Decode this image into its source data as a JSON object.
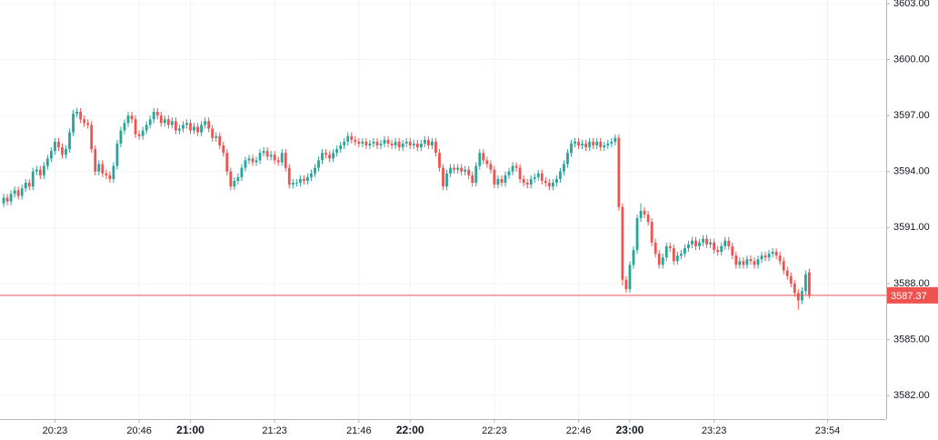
{
  "chart_data": {
    "type": "candlestick",
    "x": [
      "20:09",
      "20:10",
      "20:11",
      "20:12",
      "20:13",
      "20:14",
      "20:15",
      "20:16",
      "20:17",
      "20:18",
      "20:19",
      "20:20",
      "20:21",
      "20:22",
      "20:23",
      "20:24",
      "20:25",
      "20:26",
      "20:27",
      "20:28",
      "20:29",
      "20:30",
      "20:31",
      "20:32",
      "20:33",
      "20:34",
      "20:35",
      "20:36",
      "20:37",
      "20:38",
      "20:39",
      "20:40",
      "20:41",
      "20:42",
      "20:43",
      "20:44",
      "20:45",
      "20:46",
      "20:47",
      "20:48",
      "20:49",
      "20:50",
      "20:51",
      "20:52",
      "20:53",
      "20:54",
      "20:55",
      "20:56",
      "20:57",
      "20:58",
      "20:59",
      "21:00",
      "21:01",
      "21:02",
      "21:03",
      "21:04",
      "21:05",
      "21:06",
      "21:07",
      "21:08",
      "21:09",
      "21:10",
      "21:11",
      "21:12",
      "21:13",
      "21:14",
      "21:15",
      "21:16",
      "21:17",
      "21:18",
      "21:19",
      "21:20",
      "21:21",
      "21:22",
      "21:23",
      "21:24",
      "21:25",
      "21:26",
      "21:27",
      "21:28",
      "21:29",
      "21:30",
      "21:31",
      "21:32",
      "21:33",
      "21:34",
      "21:35",
      "21:36",
      "21:37",
      "21:38",
      "21:39",
      "21:40",
      "21:41",
      "21:42",
      "21:43",
      "21:44",
      "21:45",
      "21:46",
      "21:47",
      "21:48",
      "21:49",
      "21:50",
      "21:51",
      "21:52",
      "21:53",
      "21:54",
      "21:55",
      "21:56",
      "21:57",
      "21:58",
      "21:59",
      "22:00",
      "22:01",
      "22:02",
      "22:03",
      "22:04",
      "22:05",
      "22:06",
      "22:07",
      "22:08",
      "22:09",
      "22:10",
      "22:11",
      "22:12",
      "22:13",
      "22:14",
      "22:15",
      "22:16",
      "22:17",
      "22:18",
      "22:19",
      "22:20",
      "22:21",
      "22:22",
      "22:23",
      "22:24",
      "22:25",
      "22:26",
      "22:27",
      "22:28",
      "22:29",
      "22:30",
      "22:31",
      "22:32",
      "22:33",
      "22:34",
      "22:35",
      "22:36",
      "22:37",
      "22:38",
      "22:39",
      "22:40",
      "22:41",
      "22:42",
      "22:43",
      "22:44",
      "22:45",
      "22:46",
      "22:47",
      "22:48",
      "22:49",
      "22:50",
      "22:51",
      "22:52",
      "22:53",
      "22:54",
      "22:55",
      "22:56",
      "22:57",
      "22:58",
      "22:59",
      "23:00",
      "23:01",
      "23:02",
      "23:03",
      "23:04",
      "23:05",
      "23:06",
      "23:07",
      "23:08",
      "23:09",
      "23:10",
      "23:11",
      "23:12",
      "23:13",
      "23:14",
      "23:15",
      "23:16",
      "23:17",
      "23:18",
      "23:19",
      "23:20",
      "23:21",
      "23:22",
      "23:23",
      "23:24",
      "23:25",
      "23:26",
      "23:27",
      "23:28",
      "23:29",
      "23:30",
      "23:31",
      "23:32",
      "23:33",
      "23:34",
      "23:35",
      "23:36",
      "23:37",
      "23:38",
      "23:39",
      "23:40",
      "23:41",
      "23:42",
      "23:43",
      "23:44",
      "23:45",
      "23:46",
      "23:47",
      "23:48",
      "23:49"
    ],
    "open": [
      3592.3,
      3592.6,
      3592.4,
      3592.8,
      3593.0,
      3592.7,
      3593.1,
      3593.4,
      3593.2,
      3594.0,
      3594.1,
      3593.8,
      3594.3,
      3594.7,
      3595.1,
      3595.6,
      3595.3,
      3594.9,
      3595.2,
      3596.1,
      3597.1,
      3597.2,
      3596.8,
      3596.6,
      3596.5,
      3595.2,
      3594.0,
      3594.4,
      3593.9,
      3593.8,
      3593.6,
      3594.3,
      3595.5,
      3596.2,
      3596.6,
      3597.0,
      3596.8,
      3596.0,
      3595.9,
      3596.2,
      3596.5,
      3596.8,
      3597.2,
      3597.0,
      3596.6,
      3596.8,
      3596.5,
      3596.7,
      3596.2,
      3596.3,
      3596.5,
      3596.6,
      3596.2,
      3596.4,
      3596.1,
      3596.5,
      3596.7,
      3596.3,
      3595.8,
      3595.9,
      3595.4,
      3595.0,
      3594.0,
      3593.2,
      3593.5,
      3593.7,
      3594.2,
      3594.6,
      3594.7,
      3594.5,
      3594.6,
      3595.0,
      3595.1,
      3594.8,
      3594.9,
      3594.6,
      3594.5,
      3595.0,
      3594.2,
      3593.3,
      3593.4,
      3593.4,
      3593.6,
      3593.5,
      3593.7,
      3593.9,
      3594.2,
      3594.6,
      3595.0,
      3594.9,
      3594.7,
      3595.0,
      3595.2,
      3595.4,
      3595.6,
      3595.9,
      3595.7,
      3595.6,
      3595.5,
      3595.6,
      3595.4,
      3595.5,
      3595.6,
      3595.4,
      3595.5,
      3595.7,
      3595.5,
      3595.4,
      3595.6,
      3595.3,
      3595.5,
      3595.6,
      3595.4,
      3595.5,
      3595.3,
      3595.5,
      3595.7,
      3595.4,
      3595.6,
      3595.0,
      3594.2,
      3593.2,
      3593.9,
      3594.2,
      3594.1,
      3594.2,
      3594.0,
      3594.1,
      3593.8,
      3593.4,
      3594.3,
      3595.0,
      3594.6,
      3594.4,
      3594.1,
      3593.3,
      3593.6,
      3593.4,
      3593.8,
      3594.0,
      3594.3,
      3594.2,
      3593.6,
      3593.4,
      3593.3,
      3593.6,
      3593.7,
      3593.9,
      3593.5,
      3593.4,
      3593.2,
      3593.4,
      3593.6,
      3594.0,
      3594.4,
      3595.0,
      3595.5,
      3595.6,
      3595.4,
      3595.5,
      3595.3,
      3595.6,
      3595.4,
      3595.6,
      3595.3,
      3595.4,
      3595.5,
      3595.6,
      3595.8,
      3592.1,
      3588.2,
      3587.7,
      3589.0,
      3589.8,
      3591.5,
      3591.9,
      3591.7,
      3591.3,
      3590.2,
      3589.6,
      3589.0,
      3589.4,
      3590.0,
      3589.9,
      3589.2,
      3589.5,
      3589.6,
      3589.9,
      3590.1,
      3590.3,
      3590.0,
      3590.2,
      3590.4,
      3590.1,
      3590.2,
      3589.8,
      3589.7,
      3590.0,
      3590.3,
      3590.0,
      3589.5,
      3589.0,
      3589.2,
      3589.0,
      3589.3,
      3589.2,
      3589.0,
      3589.3,
      3589.5,
      3589.4,
      3589.6,
      3589.7,
      3589.5,
      3589.2,
      3588.7,
      3588.4,
      3588.0,
      3587.5,
      3587.1,
      3587.6,
      3588.6
    ],
    "high": [
      3592.8,
      3592.8,
      3593.0,
      3593.2,
      3593.2,
      3593.3,
      3593.6,
      3593.6,
      3594.2,
      3594.3,
      3594.3,
      3594.5,
      3594.9,
      3595.3,
      3595.8,
      3595.8,
      3595.5,
      3595.4,
      3596.3,
      3597.3,
      3597.4,
      3597.4,
      3597.0,
      3596.8,
      3596.7,
      3595.4,
      3594.6,
      3594.6,
      3594.1,
      3594.0,
      3594.5,
      3595.7,
      3596.4,
      3596.8,
      3597.2,
      3597.2,
      3597.0,
      3596.2,
      3596.4,
      3596.7,
      3597.0,
      3597.4,
      3597.4,
      3597.2,
      3597.0,
      3597.0,
      3596.9,
      3596.9,
      3596.5,
      3596.7,
      3596.8,
      3596.8,
      3596.6,
      3596.6,
      3596.7,
      3596.9,
      3596.9,
      3596.5,
      3596.1,
      3596.1,
      3595.6,
      3595.2,
      3594.2,
      3593.7,
      3593.9,
      3594.4,
      3594.8,
      3594.9,
      3594.9,
      3594.8,
      3595.2,
      3595.3,
      3595.3,
      3595.1,
      3595.1,
      3594.8,
      3595.2,
      3595.2,
      3594.4,
      3593.6,
      3593.6,
      3593.8,
      3593.8,
      3593.9,
      3594.1,
      3594.4,
      3594.8,
      3595.2,
      3595.2,
      3595.1,
      3595.2,
      3595.4,
      3595.6,
      3595.8,
      3596.1,
      3596.1,
      3595.9,
      3595.8,
      3595.8,
      3595.8,
      3595.7,
      3595.8,
      3595.8,
      3595.7,
      3595.9,
      3595.9,
      3595.7,
      3595.8,
      3595.8,
      3595.7,
      3595.8,
      3595.8,
      3595.7,
      3595.7,
      3595.7,
      3595.9,
      3595.9,
      3595.8,
      3595.8,
      3595.2,
      3594.4,
      3594.1,
      3594.4,
      3594.4,
      3594.4,
      3594.4,
      3594.3,
      3594.3,
      3594.0,
      3594.5,
      3595.2,
      3595.2,
      3594.8,
      3594.6,
      3594.3,
      3593.8,
      3593.8,
      3594.0,
      3594.2,
      3594.5,
      3594.5,
      3594.4,
      3593.8,
      3593.6,
      3593.8,
      3593.9,
      3594.1,
      3594.1,
      3593.7,
      3593.6,
      3593.6,
      3593.8,
      3594.2,
      3594.6,
      3595.2,
      3595.7,
      3595.8,
      3595.8,
      3595.7,
      3595.7,
      3595.8,
      3595.8,
      3595.8,
      3595.8,
      3595.6,
      3595.7,
      3595.8,
      3596.0,
      3596.0,
      3592.3,
      3588.4,
      3589.2,
      3590.0,
      3591.7,
      3592.3,
      3592.1,
      3591.9,
      3591.5,
      3590.4,
      3589.8,
      3589.6,
      3590.2,
      3590.2,
      3590.1,
      3589.7,
      3589.8,
      3590.1,
      3590.3,
      3590.5,
      3590.5,
      3590.4,
      3590.6,
      3590.6,
      3590.4,
      3590.4,
      3590.0,
      3590.2,
      3590.5,
      3590.5,
      3590.2,
      3589.7,
      3589.4,
      3589.4,
      3589.5,
      3589.5,
      3589.4,
      3589.5,
      3589.7,
      3589.7,
      3589.8,
      3589.9,
      3589.9,
      3589.7,
      3589.4,
      3588.9,
      3588.6,
      3588.2,
      3587.7,
      3587.8,
      3588.7,
      3588.8
    ],
    "low": [
      3592.1,
      3592.2,
      3592.2,
      3592.6,
      3592.5,
      3592.5,
      3592.9,
      3593.0,
      3593.0,
      3593.8,
      3593.6,
      3593.6,
      3594.1,
      3594.5,
      3594.9,
      3595.1,
      3594.7,
      3594.7,
      3595.0,
      3595.9,
      3596.9,
      3596.6,
      3596.4,
      3596.3,
      3595.0,
      3593.8,
      3593.8,
      3593.7,
      3593.6,
      3593.4,
      3593.4,
      3594.1,
      3595.3,
      3596.0,
      3596.4,
      3596.6,
      3595.8,
      3595.7,
      3595.7,
      3596.0,
      3596.3,
      3596.6,
      3596.8,
      3596.4,
      3596.4,
      3596.3,
      3596.3,
      3596.0,
      3596.0,
      3596.1,
      3596.3,
      3596.0,
      3596.0,
      3595.9,
      3595.9,
      3596.3,
      3596.1,
      3595.6,
      3595.6,
      3595.2,
      3594.8,
      3593.8,
      3593.0,
      3593.0,
      3593.3,
      3593.5,
      3594.0,
      3594.4,
      3594.3,
      3594.3,
      3594.4,
      3594.8,
      3594.6,
      3594.6,
      3594.4,
      3594.3,
      3594.3,
      3594.0,
      3593.1,
      3593.1,
      3593.2,
      3593.2,
      3593.3,
      3593.3,
      3593.5,
      3593.7,
      3594.0,
      3594.4,
      3594.7,
      3594.5,
      3594.5,
      3594.8,
      3595.0,
      3595.2,
      3595.4,
      3595.5,
      3595.4,
      3595.3,
      3595.3,
      3595.2,
      3595.2,
      3595.3,
      3595.2,
      3595.2,
      3595.3,
      3595.3,
      3595.2,
      3595.2,
      3595.1,
      3595.1,
      3595.3,
      3595.2,
      3595.2,
      3595.1,
      3595.1,
      3595.3,
      3595.2,
      3595.2,
      3594.8,
      3594.0,
      3593.0,
      3593.0,
      3593.7,
      3593.9,
      3593.9,
      3593.8,
      3593.8,
      3593.6,
      3593.2,
      3593.2,
      3594.1,
      3594.4,
      3594.2,
      3593.9,
      3593.1,
      3593.1,
      3593.2,
      3593.2,
      3593.6,
      3593.8,
      3594.0,
      3593.4,
      3593.2,
      3593.1,
      3593.1,
      3593.4,
      3593.5,
      3593.3,
      3593.2,
      3593.0,
      3593.0,
      3593.2,
      3593.4,
      3593.8,
      3594.2,
      3594.8,
      3595.3,
      3595.2,
      3595.2,
      3595.1,
      3595.1,
      3595.2,
      3595.2,
      3595.1,
      3595.1,
      3595.2,
      3595.3,
      3595.4,
      3591.9,
      3587.9,
      3587.5,
      3587.5,
      3588.8,
      3589.6,
      3591.3,
      3591.5,
      3591.1,
      3590.0,
      3589.4,
      3588.8,
      3588.8,
      3589.2,
      3589.7,
      3589.0,
      3589.0,
      3589.3,
      3589.4,
      3589.7,
      3589.9,
      3589.8,
      3589.8,
      3590.0,
      3589.9,
      3589.9,
      3589.6,
      3589.5,
      3589.5,
      3589.8,
      3589.8,
      3589.3,
      3588.8,
      3588.8,
      3588.8,
      3588.8,
      3589.0,
      3588.8,
      3588.8,
      3589.1,
      3589.2,
      3589.2,
      3589.4,
      3589.3,
      3589.0,
      3588.5,
      3588.2,
      3587.8,
      3587.3,
      3586.6,
      3586.9,
      3587.4,
      3587.2
    ],
    "close": [
      3592.6,
      3592.4,
      3592.8,
      3593.0,
      3592.7,
      3593.1,
      3593.4,
      3593.2,
      3594.0,
      3594.1,
      3593.8,
      3594.3,
      3594.7,
      3595.1,
      3595.6,
      3595.3,
      3594.9,
      3595.2,
      3596.1,
      3597.1,
      3597.2,
      3596.8,
      3596.6,
      3596.5,
      3595.2,
      3594.0,
      3594.4,
      3593.9,
      3593.8,
      3593.6,
      3594.3,
      3595.5,
      3596.2,
      3596.6,
      3597.0,
      3596.8,
      3596.0,
      3595.9,
      3596.2,
      3596.5,
      3596.8,
      3597.2,
      3597.0,
      3596.6,
      3596.8,
      3596.5,
      3596.7,
      3596.2,
      3596.3,
      3596.5,
      3596.6,
      3596.2,
      3596.4,
      3596.1,
      3596.5,
      3596.7,
      3596.3,
      3595.8,
      3595.9,
      3595.4,
      3595.0,
      3594.0,
      3593.2,
      3593.5,
      3593.7,
      3594.2,
      3594.6,
      3594.7,
      3594.5,
      3594.6,
      3595.0,
      3595.1,
      3594.8,
      3594.9,
      3594.6,
      3594.5,
      3595.0,
      3594.2,
      3593.3,
      3593.4,
      3593.4,
      3593.6,
      3593.5,
      3593.7,
      3593.9,
      3594.2,
      3594.6,
      3595.0,
      3594.9,
      3594.7,
      3595.0,
      3595.2,
      3595.4,
      3595.6,
      3595.9,
      3595.7,
      3595.6,
      3595.5,
      3595.6,
      3595.4,
      3595.5,
      3595.6,
      3595.4,
      3595.5,
      3595.7,
      3595.5,
      3595.4,
      3595.6,
      3595.3,
      3595.5,
      3595.6,
      3595.4,
      3595.5,
      3595.3,
      3595.5,
      3595.7,
      3595.4,
      3595.6,
      3595.0,
      3594.2,
      3593.2,
      3593.9,
      3594.2,
      3594.1,
      3594.2,
      3594.0,
      3594.1,
      3593.8,
      3593.4,
      3594.3,
      3595.0,
      3594.6,
      3594.4,
      3594.1,
      3593.3,
      3593.6,
      3593.4,
      3593.8,
      3594.0,
      3594.3,
      3594.2,
      3593.6,
      3593.4,
      3593.3,
      3593.6,
      3593.7,
      3593.9,
      3593.5,
      3593.4,
      3593.2,
      3593.4,
      3593.6,
      3594.0,
      3594.4,
      3595.0,
      3595.5,
      3595.6,
      3595.4,
      3595.5,
      3595.3,
      3595.6,
      3595.4,
      3595.6,
      3595.3,
      3595.4,
      3595.5,
      3595.6,
      3595.8,
      3592.1,
      3588.2,
      3587.7,
      3589.0,
      3589.8,
      3591.5,
      3591.9,
      3591.7,
      3591.3,
      3590.2,
      3589.6,
      3589.0,
      3589.4,
      3590.0,
      3589.9,
      3589.2,
      3589.5,
      3589.6,
      3589.9,
      3590.1,
      3590.3,
      3590.0,
      3590.2,
      3590.4,
      3590.1,
      3590.2,
      3589.8,
      3589.7,
      3590.0,
      3590.3,
      3590.0,
      3589.5,
      3589.0,
      3589.2,
      3589.0,
      3589.3,
      3589.2,
      3589.0,
      3589.3,
      3589.5,
      3589.4,
      3589.6,
      3589.7,
      3589.5,
      3589.2,
      3588.7,
      3588.4,
      3588.0,
      3587.5,
      3587.1,
      3587.6,
      3588.5,
      3587.37
    ],
    "up_color": "#26a69a",
    "down_color": "#ef5350",
    "ylim": [
      3580.74,
      3603.19
    ],
    "yticks": [
      {
        "value": 3582,
        "label": "3582.00"
      },
      {
        "value": 3585,
        "label": "3585.00"
      },
      {
        "value": 3588,
        "label": "3588.00"
      },
      {
        "value": 3591,
        "label": "3591.00"
      },
      {
        "value": 3594,
        "label": "3594.00"
      },
      {
        "value": 3597,
        "label": "3597.00"
      },
      {
        "value": 3600,
        "label": "3600.00"
      },
      {
        "value": 3603,
        "label": "3603.00"
      }
    ],
    "xlim": [
      "20:08",
      "24:10"
    ],
    "xticks": [
      "20:23",
      "20:46",
      "21:00",
      "21:23",
      "21:46",
      "22:00",
      "22:23",
      "22:46",
      "23:00",
      "23:23",
      "23:54"
    ],
    "grid": true,
    "last_price_line": true
  }
}
